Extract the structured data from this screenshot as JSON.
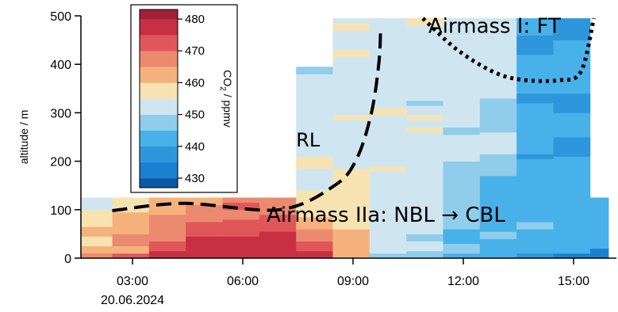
{
  "chart_data": {
    "type": "heatmap",
    "title": "",
    "xlabel": "",
    "ylabel": "altitude / m",
    "x_ticks": [
      "03:00",
      "06:00",
      "09:00",
      "12:00",
      "15:00"
    ],
    "x_tick_hours": [
      3,
      6,
      9,
      12,
      15
    ],
    "x_date_label": "20.06.2024",
    "y_ticks": [
      "0",
      "100",
      "200",
      "300",
      "400",
      "500"
    ],
    "ylim": [
      0,
      500
    ],
    "colorbar": {
      "label": "CO₂ / ppmv",
      "label_main": "CO",
      "label_sub": "2",
      "label_rest": " / ppmv",
      "ticks": [
        "430",
        "440",
        "450",
        "460",
        "470",
        "480"
      ],
      "range": [
        427,
        483
      ],
      "bins": [
        {
          "min": 427,
          "max": 430,
          "color": "#0c57a6"
        },
        {
          "min": 430,
          "max": 435,
          "color": "#1a80cf"
        },
        {
          "min": 435,
          "max": 440,
          "color": "#2e97db"
        },
        {
          "min": 440,
          "max": 445,
          "color": "#48b1ea"
        },
        {
          "min": 445,
          "max": 450,
          "color": "#8fcdeb"
        },
        {
          "min": 450,
          "max": 455,
          "color": "#cfe6f1"
        },
        {
          "min": 455,
          "max": 460,
          "color": "#f7e3b1"
        },
        {
          "min": 460,
          "max": 465,
          "color": "#f5b27c"
        },
        {
          "min": 465,
          "max": 470,
          "color": "#ec8a6f"
        },
        {
          "min": 470,
          "max": 475,
          "color": "#e0575a"
        },
        {
          "min": 475,
          "max": 480,
          "color": "#c72f43"
        },
        {
          "min": 480,
          "max": 483,
          "color": "#a0203a"
        }
      ]
    },
    "profiles": [
      {
        "t0": 1.45,
        "t1": 2.45,
        "top": 125,
        "layers": [
          {
            "z0": 0,
            "z1": 10,
            "v": 466
          },
          {
            "z0": 10,
            "z1": 25,
            "v": 462
          },
          {
            "z0": 25,
            "z1": 45,
            "v": 459
          },
          {
            "z0": 45,
            "z1": 65,
            "v": 461
          },
          {
            "z0": 65,
            "z1": 80,
            "v": 458
          },
          {
            "z0": 80,
            "z1": 100,
            "v": 456
          },
          {
            "z0": 100,
            "z1": 125,
            "v": 453
          }
        ]
      },
      {
        "t0": 2.45,
        "t1": 3.45,
        "top": 125,
        "layers": [
          {
            "z0": 0,
            "z1": 10,
            "v": 472
          },
          {
            "z0": 10,
            "z1": 25,
            "v": 464
          },
          {
            "z0": 25,
            "z1": 50,
            "v": 467
          },
          {
            "z0": 50,
            "z1": 70,
            "v": 463
          },
          {
            "z0": 70,
            "z1": 95,
            "v": 461
          },
          {
            "z0": 95,
            "z1": 125,
            "v": 457
          }
        ]
      },
      {
        "t0": 3.45,
        "t1": 4.45,
        "top": 125,
        "layers": [
          {
            "z0": 0,
            "z1": 15,
            "v": 477
          },
          {
            "z0": 15,
            "z1": 35,
            "v": 472
          },
          {
            "z0": 35,
            "z1": 65,
            "v": 469
          },
          {
            "z0": 65,
            "z1": 90,
            "v": 466
          },
          {
            "z0": 90,
            "z1": 110,
            "v": 463
          },
          {
            "z0": 110,
            "z1": 125,
            "v": 460
          }
        ]
      },
      {
        "t0": 4.45,
        "t1": 5.45,
        "top": 125,
        "layers": [
          {
            "z0": 0,
            "z1": 45,
            "v": 477
          },
          {
            "z0": 45,
            "z1": 75,
            "v": 472
          },
          {
            "z0": 75,
            "z1": 95,
            "v": 468
          },
          {
            "z0": 95,
            "z1": 110,
            "v": 466
          },
          {
            "z0": 110,
            "z1": 125,
            "v": 463
          }
        ]
      },
      {
        "t0": 5.45,
        "t1": 6.45,
        "top": 125,
        "layers": [
          {
            "z0": 0,
            "z1": 45,
            "v": 477
          },
          {
            "z0": 45,
            "z1": 80,
            "v": 472
          },
          {
            "z0": 80,
            "z1": 100,
            "v": 469
          },
          {
            "z0": 100,
            "z1": 115,
            "v": 472
          },
          {
            "z0": 115,
            "z1": 125,
            "v": 467
          }
        ]
      },
      {
        "t0": 6.45,
        "t1": 7.45,
        "top": 125,
        "layers": [
          {
            "z0": 0,
            "z1": 55,
            "v": 477
          },
          {
            "z0": 55,
            "z1": 90,
            "v": 472
          },
          {
            "z0": 90,
            "z1": 110,
            "v": 469
          },
          {
            "z0": 110,
            "z1": 125,
            "v": 466
          }
        ]
      },
      {
        "t0": 7.45,
        "t1": 8.45,
        "top": 395,
        "layers": [
          {
            "z0": 0,
            "z1": 15,
            "v": 477
          },
          {
            "z0": 15,
            "z1": 35,
            "v": 472
          },
          {
            "z0": 35,
            "z1": 60,
            "v": 467
          },
          {
            "z0": 60,
            "z1": 85,
            "v": 462
          },
          {
            "z0": 85,
            "z1": 140,
            "v": 457
          },
          {
            "z0": 140,
            "z1": 185,
            "v": 453
          },
          {
            "z0": 185,
            "z1": 210,
            "v": 457
          },
          {
            "z0": 210,
            "z1": 380,
            "v": 452
          },
          {
            "z0": 380,
            "z1": 395,
            "v": 449
          }
        ]
      },
      {
        "t0": 8.45,
        "t1": 9.45,
        "top": 495,
        "layers": [
          {
            "z0": 0,
            "z1": 25,
            "v": 462
          },
          {
            "z0": 25,
            "z1": 60,
            "v": 461
          },
          {
            "z0": 60,
            "z1": 130,
            "v": 457
          },
          {
            "z0": 130,
            "z1": 185,
            "v": 456
          },
          {
            "z0": 185,
            "z1": 285,
            "v": 452
          },
          {
            "z0": 285,
            "z1": 295,
            "v": 457
          },
          {
            "z0": 295,
            "z1": 415,
            "v": 452
          },
          {
            "z0": 415,
            "z1": 430,
            "v": 457
          },
          {
            "z0": 430,
            "z1": 470,
            "v": 452
          },
          {
            "z0": 470,
            "z1": 485,
            "v": 457
          },
          {
            "z0": 485,
            "z1": 495,
            "v": 452
          }
        ]
      },
      {
        "t0": 9.45,
        "t1": 10.45,
        "top": 495,
        "layers": [
          {
            "z0": 0,
            "z1": 10,
            "v": 447
          },
          {
            "z0": 10,
            "z1": 180,
            "v": 452
          },
          {
            "z0": 180,
            "z1": 190,
            "v": 457
          },
          {
            "z0": 190,
            "z1": 295,
            "v": 452
          },
          {
            "z0": 295,
            "z1": 310,
            "v": 457
          },
          {
            "z0": 310,
            "z1": 495,
            "v": 452
          }
        ]
      },
      {
        "t0": 10.45,
        "t1": 11.45,
        "top": 495,
        "layers": [
          {
            "z0": 0,
            "z1": 15,
            "v": 447
          },
          {
            "z0": 15,
            "z1": 35,
            "v": 452
          },
          {
            "z0": 35,
            "z1": 50,
            "v": 447
          },
          {
            "z0": 50,
            "z1": 260,
            "v": 452
          },
          {
            "z0": 260,
            "z1": 270,
            "v": 457
          },
          {
            "z0": 270,
            "z1": 285,
            "v": 452
          },
          {
            "z0": 285,
            "z1": 295,
            "v": 457
          },
          {
            "z0": 295,
            "z1": 315,
            "v": 452
          },
          {
            "z0": 315,
            "z1": 325,
            "v": 447
          },
          {
            "z0": 325,
            "z1": 480,
            "v": 452
          },
          {
            "z0": 480,
            "z1": 495,
            "v": 457
          }
        ]
      },
      {
        "t0": 11.45,
        "t1": 12.45,
        "top": 495,
        "layers": [
          {
            "z0": 0,
            "z1": 10,
            "v": 442
          },
          {
            "z0": 10,
            "z1": 30,
            "v": 447
          },
          {
            "z0": 30,
            "z1": 60,
            "v": 442
          },
          {
            "z0": 60,
            "z1": 200,
            "v": 447
          },
          {
            "z0": 200,
            "z1": 255,
            "v": 452
          },
          {
            "z0": 255,
            "z1": 270,
            "v": 447
          },
          {
            "z0": 270,
            "z1": 495,
            "v": 452
          }
        ]
      },
      {
        "t0": 12.45,
        "t1": 13.45,
        "top": 495,
        "layers": [
          {
            "z0": 0,
            "z1": 40,
            "v": 442
          },
          {
            "z0": 40,
            "z1": 55,
            "v": 447
          },
          {
            "z0": 55,
            "z1": 170,
            "v": 442
          },
          {
            "z0": 170,
            "z1": 215,
            "v": 447
          },
          {
            "z0": 215,
            "z1": 260,
            "v": 452
          },
          {
            "z0": 260,
            "z1": 330,
            "v": 447
          },
          {
            "z0": 330,
            "z1": 495,
            "v": 452
          }
        ]
      },
      {
        "t0": 13.45,
        "t1": 14.45,
        "top": 495,
        "layers": [
          {
            "z0": 0,
            "z1": 10,
            "v": 437
          },
          {
            "z0": 10,
            "z1": 60,
            "v": 442
          },
          {
            "z0": 60,
            "z1": 75,
            "v": 447
          },
          {
            "z0": 75,
            "z1": 205,
            "v": 442
          },
          {
            "z0": 205,
            "z1": 215,
            "v": 437
          },
          {
            "z0": 215,
            "z1": 320,
            "v": 442
          },
          {
            "z0": 320,
            "z1": 340,
            "v": 437
          },
          {
            "z0": 340,
            "z1": 420,
            "v": 442
          },
          {
            "z0": 420,
            "z1": 460,
            "v": 437
          },
          {
            "z0": 460,
            "z1": 495,
            "v": 442
          }
        ]
      },
      {
        "t0": 14.45,
        "t1": 15.45,
        "top": 495,
        "layers": [
          {
            "z0": 0,
            "z1": 10,
            "v": 432
          },
          {
            "z0": 10,
            "z1": 115,
            "v": 442
          },
          {
            "z0": 115,
            "z1": 210,
            "v": 442
          },
          {
            "z0": 210,
            "z1": 250,
            "v": 437
          },
          {
            "z0": 250,
            "z1": 300,
            "v": 442
          },
          {
            "z0": 300,
            "z1": 340,
            "v": 437
          },
          {
            "z0": 340,
            "z1": 450,
            "v": 442
          },
          {
            "z0": 450,
            "z1": 495,
            "v": 437
          }
        ]
      },
      {
        "t0": 15.45,
        "t1": 15.95,
        "top": 125,
        "layers": [
          {
            "z0": 0,
            "z1": 20,
            "v": 432
          },
          {
            "z0": 20,
            "z1": 125,
            "v": 442
          }
        ]
      }
    ],
    "boundaries": [
      {
        "id": "RL",
        "points": [
          [
            2.45,
            98
          ],
          [
            4.4,
            113
          ],
          [
            7.0,
            100
          ],
          [
            8.5,
            150
          ],
          [
            9.1,
            205
          ],
          [
            9.5,
            300
          ],
          [
            9.7,
            400
          ],
          [
            9.75,
            470
          ]
        ]
      },
      {
        "id": "FT",
        "points": [
          [
            10.9,
            495
          ],
          [
            11.8,
            432
          ],
          [
            12.8,
            385
          ],
          [
            13.6,
            368
          ],
          [
            14.6,
            367
          ],
          [
            15.2,
            385
          ],
          [
            15.55,
            495
          ]
        ]
      }
    ],
    "annotations": [
      {
        "id": "RL",
        "text": "RL",
        "t": 7.45,
        "z": 230
      },
      {
        "id": "FT",
        "text": "Airmass I: FT",
        "t": 11.05,
        "z": 465
      },
      {
        "id": "NBL",
        "text": "Airmass IIa: NBL → CBL",
        "t": 6.65,
        "z": 75
      }
    ]
  }
}
